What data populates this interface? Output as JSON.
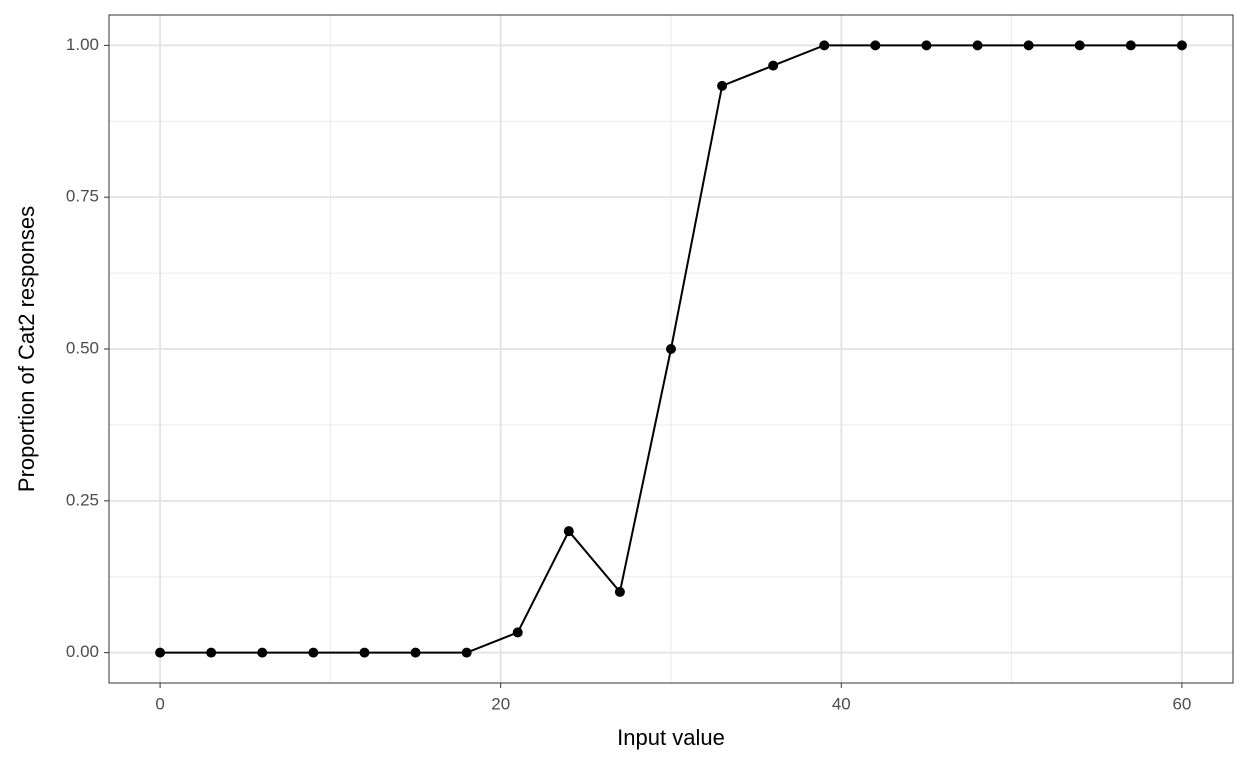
{
  "chart_data": {
    "type": "line",
    "x_label": "Input value",
    "y_label": "Proportion of Cat2 responses",
    "x": [
      0,
      3,
      6,
      9,
      12,
      15,
      18,
      21,
      24,
      27,
      30,
      33,
      36,
      39,
      42,
      45,
      48,
      51,
      54,
      57,
      60
    ],
    "series": [
      {
        "color": "#000000",
        "values": [
          0,
          0,
          0,
          0,
          0,
          0,
          0,
          0.0333,
          0.2,
          0.1,
          0.5,
          0.9333,
          0.9667,
          1,
          1,
          1,
          1,
          1,
          1,
          1,
          1
        ]
      }
    ],
    "xlim": [
      -3,
      63
    ],
    "ylim": [
      -0.05,
      1.05
    ],
    "xticks": [
      0,
      20,
      40,
      60
    ],
    "yticks": [
      {
        "value": 0,
        "label": "0.00"
      },
      {
        "value": 0.25,
        "label": "0.25"
      },
      {
        "value": 0.5,
        "label": "0.50"
      },
      {
        "value": 0.75,
        "label": "0.75"
      },
      {
        "value": 1,
        "label": "1.00"
      }
    ],
    "x_minor_ticks": [
      10,
      30,
      50
    ],
    "y_minor_ticks": [
      0.125,
      0.375,
      0.625,
      0.875
    ],
    "grid": true
  }
}
